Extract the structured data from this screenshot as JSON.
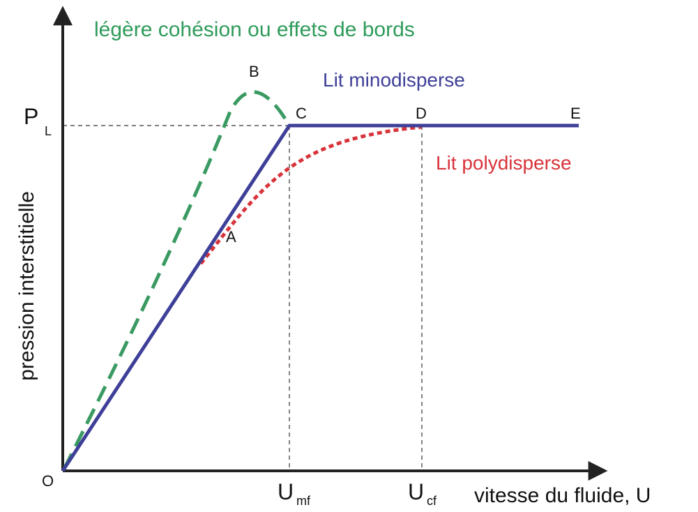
{
  "annotations": {
    "cohesion": "légère cohésion ou effets de bords",
    "mono": "Lit minodisperse",
    "poly": "Lit polydisperse"
  },
  "axes": {
    "y_label": "pression interstitielle",
    "x_label": "vitesse du fluide, U"
  },
  "points": [
    "O",
    "A",
    "B",
    "C",
    "D",
    "E"
  ],
  "levels": {
    "pl": {
      "symbol": "P",
      "subscript": "L"
    },
    "umf": {
      "symbol": "U",
      "subscript": "mf"
    },
    "ucf": {
      "symbol": "U",
      "subscript": "cf"
    }
  }
}
